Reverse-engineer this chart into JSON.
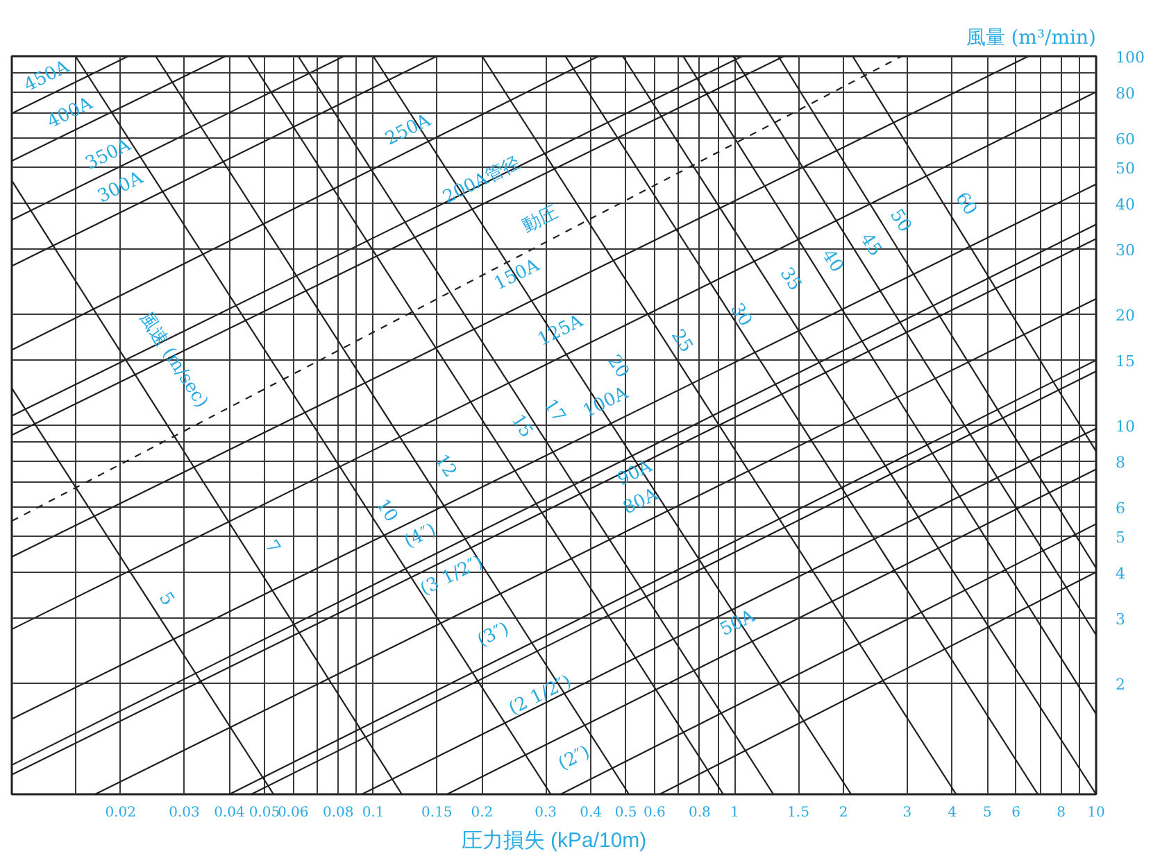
{
  "chart_data": {
    "type": "line",
    "log": "xy",
    "grid": true,
    "line_style": "solid",
    "xlabel": "圧力損失 (kPa/10m)",
    "ylabel": "風量 (m³/min)",
    "xlim": [
      0.01,
      10
    ],
    "ylim": [
      1,
      100
    ],
    "xticks": [
      {
        "value": 0.015,
        "label": null
      },
      0.02,
      0.03,
      0.04,
      0.05,
      0.06,
      {
        "value": 0.07,
        "label": null
      },
      0.08,
      {
        "value": 0.09,
        "label": null
      },
      0.1,
      0.15,
      0.2,
      0.3,
      0.4,
      0.5,
      0.6,
      {
        "value": 0.7,
        "label": null
      },
      0.8,
      {
        "value": 0.9,
        "label": null
      },
      1,
      1.5,
      2,
      3,
      4,
      5,
      6,
      {
        "value": 7,
        "label": null
      },
      8,
      {
        "value": 9,
        "label": null
      },
      10
    ],
    "yticks": [
      2,
      3,
      4,
      5,
      6,
      {
        "value": 7,
        "label": null
      },
      8,
      {
        "value": 9,
        "label": null
      },
      10,
      15,
      20,
      30,
      40,
      50,
      60,
      {
        "value": 70,
        "label": null
      },
      80,
      {
        "value": 90,
        "label": null
      },
      100
    ],
    "series": [
      {
        "color": "#231f20",
        "x": [
          0.01,
          0.021
        ],
        "values": [
          70,
          100
        ]
      },
      {
        "color": "#231f20",
        "x": [
          0.01,
          0.039
        ],
        "values": [
          52,
          100
        ]
      },
      {
        "color": "#231f20",
        "x": [
          0.01,
          0.083
        ],
        "values": [
          36,
          100
        ]
      },
      {
        "color": "#231f20",
        "x": [
          0.01,
          0.15
        ],
        "values": [
          27,
          100
        ]
      },
      {
        "color": "#231f20",
        "x": [
          0.01,
          0.42
        ],
        "values": [
          16,
          100
        ]
      },
      {
        "color": "#231f20",
        "x": [
          0.01,
          1.05
        ],
        "values": [
          10.6,
          100
        ]
      },
      {
        "color": "#231f20",
        "x": [
          0.01,
          1.37
        ],
        "values": [
          9.4,
          100
        ]
      },
      {
        "color": "#231f20",
        "x": [
          0.01,
          6.5
        ],
        "values": [
          4.4,
          100
        ]
      },
      {
        "color": "#231f20",
        "x": [
          0.01,
          10
        ],
        "values": [
          2.8,
          80
        ]
      },
      {
        "color": "#231f20",
        "x": [
          0.01,
          10
        ],
        "values": [
          1.6,
          45
        ]
      },
      {
        "color": "#231f20",
        "x": [
          0.01,
          10
        ],
        "values": [
          1.2,
          35
        ]
      },
      {
        "color": "#231f20",
        "x": [
          0.01,
          10
        ],
        "values": [
          1.13,
          32
        ]
      },
      {
        "color": "#231f20",
        "x": [
          0.017,
          10
        ],
        "values": [
          1,
          22
        ]
      },
      {
        "color": "#231f20",
        "x": [
          0.04,
          10
        ],
        "values": [
          1,
          15
        ]
      },
      {
        "color": "#231f20",
        "x": [
          0.046,
          10
        ],
        "values": [
          1,
          14
        ]
      },
      {
        "color": "#231f20",
        "x": [
          0.093,
          10
        ],
        "values": [
          1,
          9.8
        ]
      },
      {
        "color": "#231f20",
        "x": [
          0.16,
          10
        ],
        "values": [
          1,
          7.6
        ]
      },
      {
        "color": "#231f20",
        "x": [
          0.33,
          10
        ],
        "values": [
          1,
          5.4
        ]
      },
      {
        "color": "#231f20",
        "x": [
          0.62,
          10
        ],
        "values": [
          1,
          4.0
        ]
      },
      {
        "color": "#231f20",
        "x": [
          0.01,
          2.9
        ],
        "values": [
          5.5,
          100
        ],
        "line_style": "dashed"
      },
      {
        "color": "#231f20",
        "x": [
          0.015,
          0.31
        ],
        "values": [
          100,
          1
        ]
      },
      {
        "color": "#231f20",
        "x": [
          0.025,
          0.51
        ],
        "values": [
          100,
          1
        ]
      },
      {
        "color": "#231f20",
        "x": [
          0.045,
          0.93
        ],
        "values": [
          100,
          1
        ]
      },
      {
        "color": "#231f20",
        "x": [
          0.062,
          1.28
        ],
        "values": [
          100,
          1
        ]
      },
      {
        "color": "#231f20",
        "x": [
          0.1,
          2.1
        ],
        "values": [
          100,
          1
        ]
      },
      {
        "color": "#231f20",
        "x": [
          0.2,
          4.1
        ],
        "values": [
          100,
          1
        ]
      },
      {
        "color": "#231f20",
        "x": [
          0.34,
          6.9
        ],
        "values": [
          100,
          1
        ]
      },
      {
        "color": "#231f20",
        "x": [
          0.49,
          10
        ],
        "values": [
          100,
          1
        ]
      },
      {
        "color": "#231f20",
        "x": [
          0.72,
          10
        ],
        "values": [
          100,
          1.65
        ]
      },
      {
        "color": "#231f20",
        "x": [
          0.99,
          10
        ],
        "values": [
          100,
          2.7
        ]
      },
      {
        "color": "#231f20",
        "x": [
          1.32,
          10
        ],
        "values": [
          100,
          4.1
        ]
      },
      {
        "color": "#231f20",
        "x": [
          2.12,
          10
        ],
        "values": [
          100,
          8.5
        ]
      },
      {
        "color": "#231f20",
        "x": [
          0.01,
          0.12
        ],
        "values": [
          46,
          1
        ]
      },
      {
        "color": "#231f20",
        "x": [
          0.01,
          0.053
        ],
        "values": [
          12.6,
          1
        ]
      }
    ],
    "annotations": [
      "450A",
      "400A",
      "350A",
      "300A",
      "250A",
      "200A管径",
      "動圧",
      "150A",
      "125A",
      "100A",
      "90A",
      "80A",
      "(4″)",
      "(3 1/2″)",
      "(3″)",
      "(2 1/2″)",
      "(2″)",
      "50A",
      "風速 (m/sec)",
      "5",
      "7",
      "10",
      "12",
      "15",
      "17",
      "20",
      "25",
      "30",
      "35",
      "40",
      "45",
      "50",
      "60"
    ]
  }
}
